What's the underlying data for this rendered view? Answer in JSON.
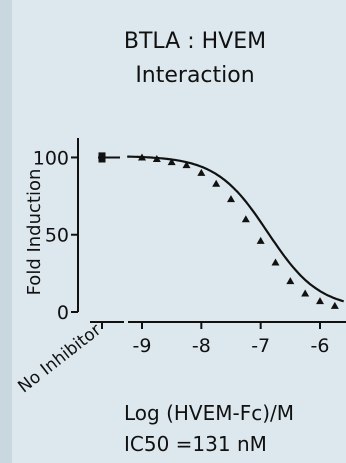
{
  "colors": {
    "background": "#dde8ee",
    "edge_band": "#c9d7df",
    "ink": "#111111"
  },
  "chart_data": {
    "type": "line",
    "title_lines": [
      "BTLA : HVEM",
      "Interaction"
    ],
    "xlabel": "Log (HVEM-Fc)/M",
    "ylabel": "Fold Induction",
    "annotation": "IC50 =131 nM",
    "xlim": [
      -9.5,
      -5.6
    ],
    "ylim": [
      0,
      110
    ],
    "x_ticks": [
      -9,
      -8,
      -7,
      -6
    ],
    "x_tick_labels": [
      "-9",
      "-8",
      "-7",
      "-6"
    ],
    "y_ticks": [
      0,
      50,
      100
    ],
    "y_tick_labels": [
      "0",
      "50",
      "100"
    ],
    "no_inhibitor_label": "No Inhibitor",
    "no_inhibitor_points": [
      {
        "y": 99
      },
      {
        "y": 101
      }
    ],
    "series": [
      {
        "marker": "triangle",
        "x": [
          -9.0,
          -8.75,
          -8.5,
          -8.25,
          -8.0,
          -7.75,
          -7.5,
          -7.25,
          -7.0,
          -6.75,
          -6.5,
          -6.25,
          -6.0,
          -5.75
        ],
        "y": [
          100,
          99,
          97,
          95,
          90,
          83,
          73,
          60,
          46,
          32,
          20,
          12,
          7,
          4
        ]
      }
    ],
    "curve": {
      "top": 101,
      "bottom": 2,
      "log_ic50": -6.88,
      "hill": 1.0
    }
  }
}
